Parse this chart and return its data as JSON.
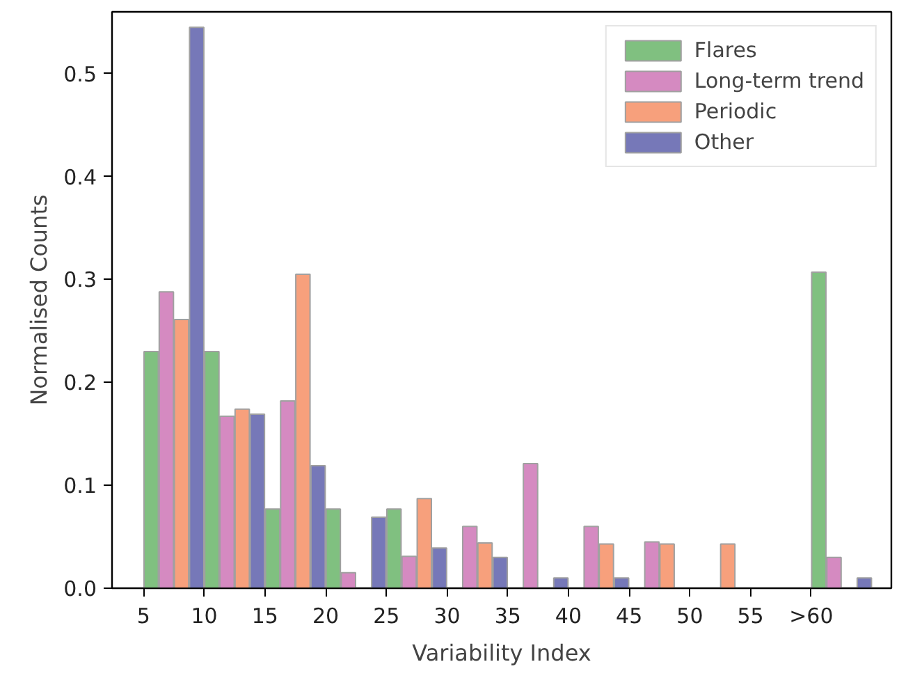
{
  "chart_data": {
    "type": "histogram",
    "xlabel": "Variability Index",
    "ylabel": "Normalised Counts",
    "bins": [
      5,
      10,
      15,
      20,
      25,
      30,
      35,
      40,
      45,
      50,
      55,
      60,
      65
    ],
    "series": [
      {
        "name": "Flares",
        "color": "#80c080",
        "values": [
          0.23,
          0.23,
          0.077,
          0.077,
          0.077,
          0,
          0,
          0,
          0,
          0,
          0,
          0.307
        ]
      },
      {
        "name": "Long-term trend",
        "color": "#d58ac1",
        "values": [
          0.288,
          0.167,
          0.182,
          0.015,
          0.031,
          0.06,
          0.121,
          0.06,
          0.045,
          0,
          0,
          0.03
        ]
      },
      {
        "name": "Periodic",
        "color": "#f7a07c",
        "values": [
          0.261,
          0.174,
          0.305,
          0,
          0.087,
          0.044,
          0,
          0.043,
          0.043,
          0.043,
          0,
          0
        ]
      },
      {
        "name": "Other",
        "color": "#7678b8",
        "values": [
          0.545,
          0.169,
          0.119,
          0.069,
          0.039,
          0.03,
          0.01,
          0.01,
          0,
          0,
          0,
          0.01
        ]
      }
    ],
    "xlim": [
      2.4,
      66.6
    ],
    "ylim": [
      0,
      0.56
    ],
    "xticks": [
      5,
      10,
      15,
      20,
      25,
      30,
      35,
      40,
      45,
      50,
      55,
      {
        "value": 60,
        "label": ">60"
      }
    ],
    "yticks": [
      {
        "value": 0,
        "label": "0.0"
      },
      {
        "value": 0.1,
        "label": "0.1"
      },
      {
        "value": 0.2,
        "label": "0.2"
      },
      {
        "value": 0.3,
        "label": "0.3"
      },
      {
        "value": 0.4,
        "label": "0.4"
      },
      {
        "value": 0.5,
        "label": "0.5"
      }
    ],
    "legend": "top right",
    "grid": false
  }
}
